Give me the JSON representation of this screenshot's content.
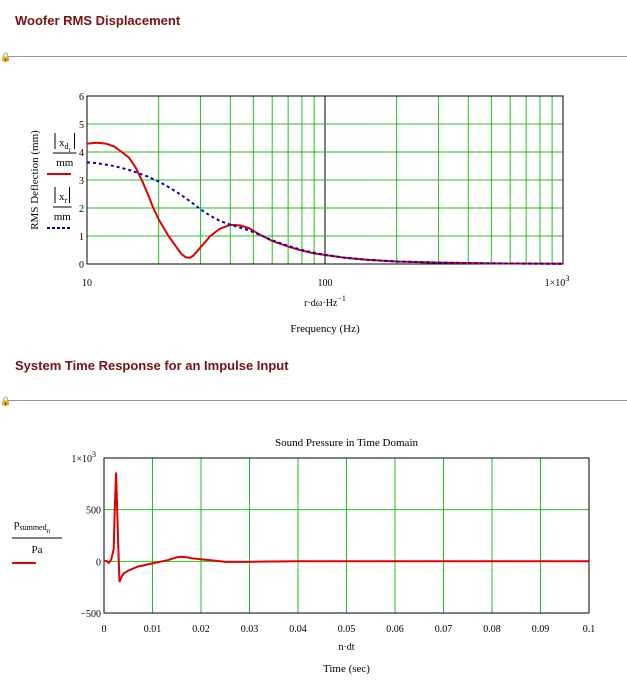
{
  "section1": {
    "title": "Woofer RMS Displacement"
  },
  "section2": {
    "title": "System Time Response for an Impulse Input"
  },
  "chart_data": [
    {
      "type": "line",
      "title": "",
      "xscale": "log",
      "xlim": [
        10,
        1000
      ],
      "ylim": [
        0,
        6
      ],
      "yticks": [
        "0",
        "1",
        "2",
        "3",
        "4",
        "5",
        "6"
      ],
      "xticks": [
        "10",
        "100",
        "1×10"
      ],
      "xtick_sup": "3",
      "xlabel_expr": "r·dω·Hz",
      "xlabel_exp": "−1",
      "xlabel": "Frequency (Hz)",
      "ylabel": "RMS Deflection (mm)",
      "legend": [
        {
          "num": "x",
          "num_sub": "d",
          "num_sub2": "r",
          "den": "mm",
          "style": "solid",
          "color": "#e00000"
        },
        {
          "num": "x",
          "num_sub": "r",
          "den": "mm",
          "style": "dotted",
          "color": "#0000cc"
        }
      ],
      "series": [
        {
          "style": "solid",
          "color": "#e00000",
          "x": [
            10,
            11,
            12,
            13,
            14,
            15,
            16,
            17,
            18,
            19,
            20,
            22,
            24,
            25,
            26,
            27,
            28,
            30,
            33,
            36,
            40,
            44,
            48,
            52,
            56,
            60,
            70,
            80,
            90,
            100,
            120,
            150,
            200,
            300,
            500,
            1000
          ],
          "y": [
            4.3,
            4.33,
            4.3,
            4.2,
            4.0,
            3.8,
            3.45,
            3.0,
            2.5,
            2.0,
            1.6,
            1.0,
            0.55,
            0.35,
            0.24,
            0.22,
            0.3,
            0.6,
            1.0,
            1.25,
            1.4,
            1.38,
            1.28,
            1.1,
            0.95,
            0.82,
            0.62,
            0.48,
            0.38,
            0.32,
            0.23,
            0.15,
            0.09,
            0.05,
            0.02,
            0.008
          ]
        },
        {
          "style": "dotted",
          "color": "#0000cc",
          "x": [
            10,
            11,
            12,
            13,
            14,
            15,
            16,
            17,
            18,
            19,
            20,
            22,
            24,
            26,
            28,
            30,
            33,
            36,
            40,
            44,
            48,
            52,
            56,
            60,
            70,
            80,
            90,
            100,
            120,
            150,
            200,
            300,
            500,
            1000
          ],
          "y": [
            3.63,
            3.6,
            3.55,
            3.5,
            3.43,
            3.36,
            3.28,
            3.2,
            3.12,
            3.03,
            2.95,
            2.75,
            2.55,
            2.35,
            2.15,
            1.95,
            1.72,
            1.55,
            1.4,
            1.3,
            1.2,
            1.08,
            0.96,
            0.85,
            0.65,
            0.5,
            0.4,
            0.33,
            0.23,
            0.15,
            0.09,
            0.05,
            0.02,
            0.008
          ]
        }
      ]
    },
    {
      "type": "line",
      "title": "Sound Pressure in Time Domain",
      "xlim": [
        0,
        0.1
      ],
      "ylim": [
        -500,
        1000
      ],
      "xticks": [
        "0",
        "0.01",
        "0.02",
        "0.03",
        "0.04",
        "0.05",
        "0.06",
        "0.07",
        "0.08",
        "0.09",
        "0.1"
      ],
      "yticks": [
        "−500",
        "0",
        "500",
        "1×10"
      ],
      "ytick_sup": "3",
      "xlabel_expr": "n·dt",
      "xlabel": "Time (sec)",
      "legend": [
        {
          "num": "p",
          "num_sub": "summed",
          "num_sub2": "n",
          "den": "Pa",
          "style": "solid",
          "color": "#e00000"
        }
      ],
      "series": [
        {
          "style": "solid",
          "color": "#e00000",
          "x": [
            0,
            0.0005,
            0.001,
            0.0015,
            0.002,
            0.0022,
            0.0025,
            0.0027,
            0.003,
            0.0032,
            0.0035,
            0.004,
            0.005,
            0.006,
            0.007,
            0.008,
            0.009,
            0.01,
            0.011,
            0.012,
            0.013,
            0.014,
            0.015,
            0.016,
            0.017,
            0.018,
            0.019,
            0.02,
            0.021,
            0.022,
            0.023,
            0.024,
            0.025,
            0.026,
            0.027,
            0.028,
            0.03,
            0.032,
            0.034,
            0.04,
            0.05,
            0.06,
            0.07,
            0.08,
            0.09,
            0.1
          ],
          "y": [
            0,
            5,
            -15,
            20,
            120,
            480,
            860,
            520,
            80,
            -200,
            -160,
            -120,
            -90,
            -70,
            -50,
            -40,
            -30,
            -20,
            -10,
            0,
            10,
            25,
            40,
            45,
            40,
            30,
            25,
            20,
            15,
            10,
            5,
            0,
            -5,
            -5,
            -5,
            -5,
            -5,
            -3,
            -2,
            0,
            0,
            0,
            0,
            0,
            0,
            0
          ]
        }
      ]
    }
  ]
}
